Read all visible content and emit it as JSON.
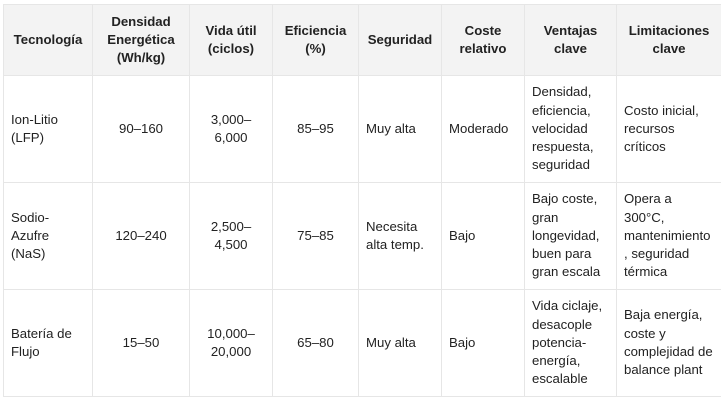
{
  "headers": [
    "Tecnología",
    "Densidad Energética (Wh/kg)",
    "Vida útil (ciclos)",
    "Eficiencia (%)",
    "Seguridad",
    "Coste relativo",
    "Ventajas clave",
    "Limitaciones clave"
  ],
  "rows": [
    [
      "Ion-Litio (LFP)",
      "90–160",
      "3,000–6,000",
      "85–95",
      "Muy alta",
      "Moderado",
      "Densidad, eficiencia, velocidad respuesta, seguridad",
      "Costo inicial, recursos críticos"
    ],
    [
      "Sodio-Azufre (NaS)",
      "120–240",
      "2,500–4,500",
      "75–85",
      "Necesita alta temp.",
      "Bajo",
      "Bajo coste, gran longevidad, buen para gran escala",
      "Opera a 300°C, mantenimiento, seguridad térmica"
    ],
    [
      "Batería de Flujo",
      "15–50",
      "10,000–20,000",
      "65–80",
      "Muy alta",
      "Bajo",
      "Vida ciclaje, desacople potencia-energía, escalable",
      "Baja energía, coste y complejidad de balance plant"
    ]
  ]
}
